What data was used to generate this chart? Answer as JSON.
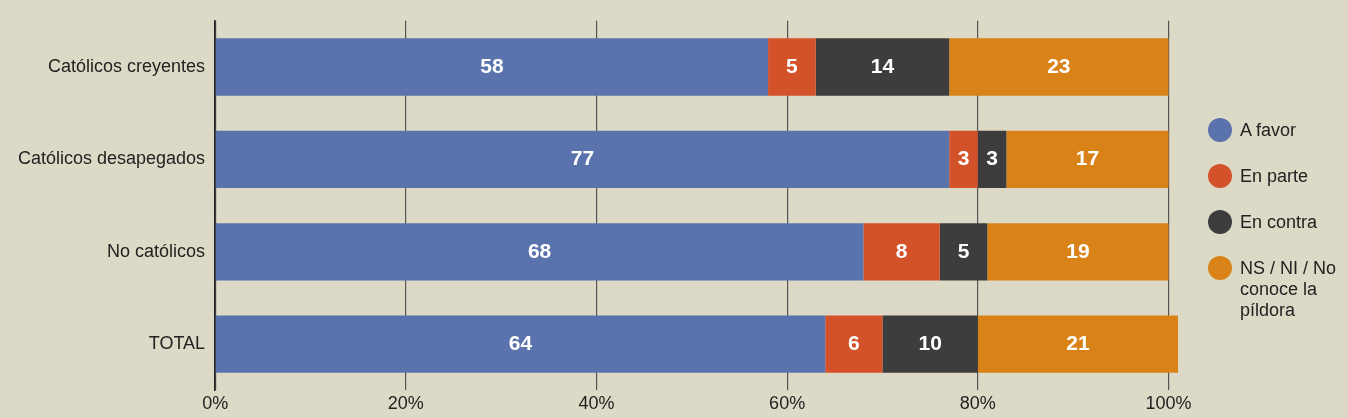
{
  "chart_data": {
    "type": "bar",
    "orientation": "horizontal",
    "stacked": true,
    "categories": [
      "Católicos creyentes",
      "Católicos desapegados",
      "No católicos",
      "TOTAL"
    ],
    "series": [
      {
        "name": "A favor",
        "color": "#5b73ad",
        "values": [
          58,
          77,
          68,
          64
        ]
      },
      {
        "name": "En parte",
        "color": "#d4522a",
        "values": [
          5,
          3,
          8,
          6
        ]
      },
      {
        "name": "En contra",
        "color": "#3d3d3d",
        "values": [
          14,
          3,
          5,
          10
        ]
      },
      {
        "name": "NS / NI / No conoce la píldora",
        "color": "#d98218",
        "values": [
          23,
          17,
          19,
          21
        ]
      }
    ],
    "xlim": [
      0,
      101
    ],
    "xticks": [
      {
        "value": 0,
        "label": "0%"
      },
      {
        "value": 20,
        "label": "20%"
      },
      {
        "value": 40,
        "label": "40%"
      },
      {
        "value": 60,
        "label": "60%"
      },
      {
        "value": 80,
        "label": "80%"
      },
      {
        "value": 100,
        "label": "100%"
      }
    ],
    "grid": "x",
    "legend": "right",
    "data_labels": true
  }
}
